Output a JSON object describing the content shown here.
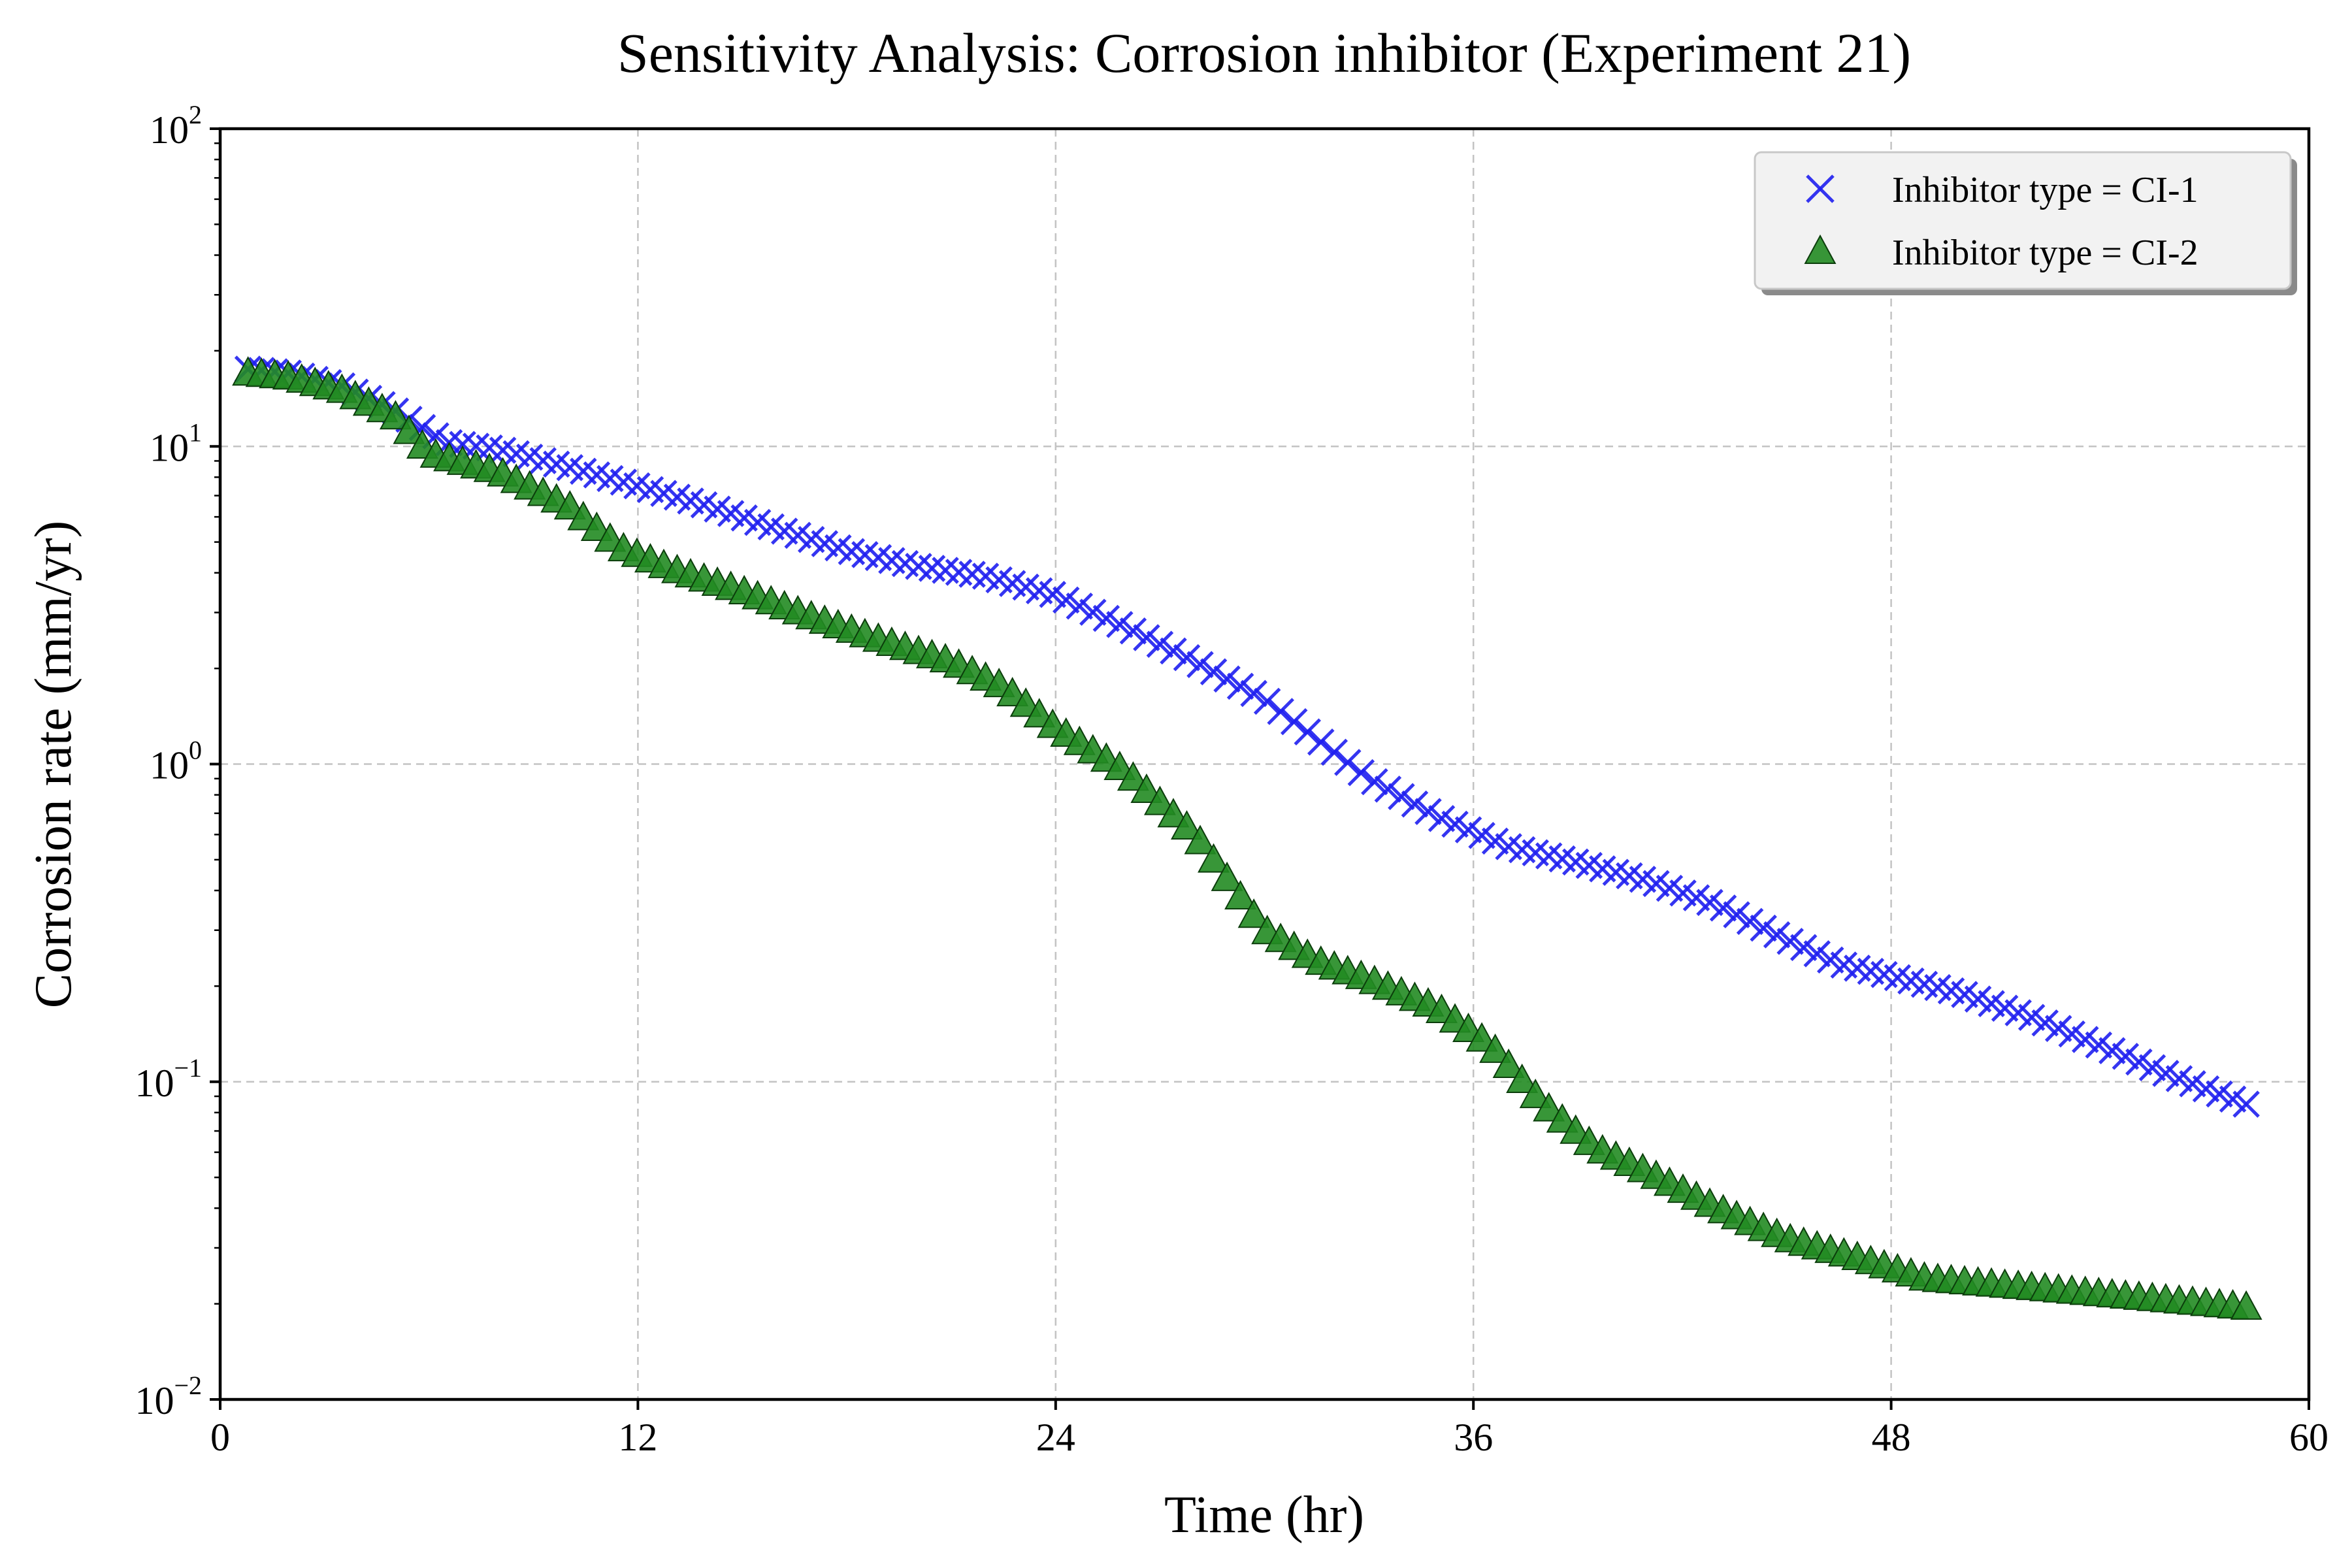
{
  "chart_data": {
    "type": "scatter",
    "title": "Sensitivity Analysis: Corrosion inhibitor (Experiment 21)",
    "xlabel": "Time (hr)",
    "ylabel": "Corrosion rate (mm/yr)",
    "xlim": [
      0,
      60
    ],
    "ylim": [
      0.01,
      100
    ],
    "yscale": "log",
    "xticks": [
      0,
      12,
      24,
      36,
      48,
      60
    ],
    "xtick_labels": [
      "0",
      "12",
      "24",
      "36",
      "48",
      "60"
    ],
    "yticks": [
      0.01,
      0.1,
      1,
      10,
      100
    ],
    "ytick_labels": [
      {
        "base": "10",
        "exp": "−2"
      },
      {
        "base": "10",
        "exp": "−1"
      },
      {
        "base": "10",
        "exp": "0"
      },
      {
        "base": "10",
        "exp": "1"
      },
      {
        "base": "10",
        "exp": "2"
      }
    ],
    "grid": true,
    "legend_position": "top-right",
    "x_range": [
      0.8,
      58.2
    ],
    "point_count": 150,
    "series": [
      {
        "name": "Inhibitor type = CI-1",
        "marker": "x",
        "color": "#1f1fef",
        "knots": [
          [
            0.8,
            17.5
          ],
          [
            2.0,
            17.0
          ],
          [
            3.5,
            15.5
          ],
          [
            5.0,
            13.0
          ],
          [
            6.5,
            10.3
          ],
          [
            8.0,
            9.8
          ],
          [
            10.0,
            8.6
          ],
          [
            12.0,
            7.5
          ],
          [
            14.0,
            6.5
          ],
          [
            16.0,
            5.5
          ],
          [
            18.0,
            4.7
          ],
          [
            20.0,
            4.2
          ],
          [
            22.0,
            3.9
          ],
          [
            24.0,
            3.4
          ],
          [
            26.0,
            2.7
          ],
          [
            28.0,
            2.1
          ],
          [
            30.0,
            1.6
          ],
          [
            31.5,
            1.2
          ],
          [
            33.0,
            0.9
          ],
          [
            35.0,
            0.68
          ],
          [
            37.0,
            0.55
          ],
          [
            39.0,
            0.49
          ],
          [
            41.0,
            0.43
          ],
          [
            43.0,
            0.36
          ],
          [
            45.0,
            0.28
          ],
          [
            46.5,
            0.235
          ],
          [
            48.0,
            0.215
          ],
          [
            50.0,
            0.19
          ],
          [
            52.0,
            0.16
          ],
          [
            54.0,
            0.13
          ],
          [
            56.0,
            0.105
          ],
          [
            58.2,
            0.085
          ]
        ]
      },
      {
        "name": "Inhibitor type = CI-2",
        "marker": "triangle",
        "color": "#228b22",
        "knots": [
          [
            0.8,
            17.0
          ],
          [
            2.0,
            16.5
          ],
          [
            3.5,
            15.0
          ],
          [
            5.0,
            12.5
          ],
          [
            6.0,
            9.5
          ],
          [
            8.0,
            8.3
          ],
          [
            10.0,
            6.5
          ],
          [
            11.5,
            4.8
          ],
          [
            13.0,
            4.1
          ],
          [
            15.0,
            3.5
          ],
          [
            17.0,
            2.9
          ],
          [
            19.0,
            2.45
          ],
          [
            21.0,
            2.1
          ],
          [
            22.5,
            1.75
          ],
          [
            24.0,
            1.3
          ],
          [
            26.0,
            0.95
          ],
          [
            28.0,
            0.6
          ],
          [
            30.0,
            0.3
          ],
          [
            31.5,
            0.24
          ],
          [
            33.0,
            0.21
          ],
          [
            35.0,
            0.17
          ],
          [
            36.5,
            0.13
          ],
          [
            38.0,
            0.085
          ],
          [
            39.5,
            0.062
          ],
          [
            41.0,
            0.052
          ],
          [
            43.0,
            0.04
          ],
          [
            45.0,
            0.032
          ],
          [
            47.0,
            0.028
          ],
          [
            49.0,
            0.024
          ],
          [
            52.0,
            0.0225
          ],
          [
            55.0,
            0.021
          ],
          [
            58.2,
            0.0195
          ]
        ]
      }
    ]
  }
}
